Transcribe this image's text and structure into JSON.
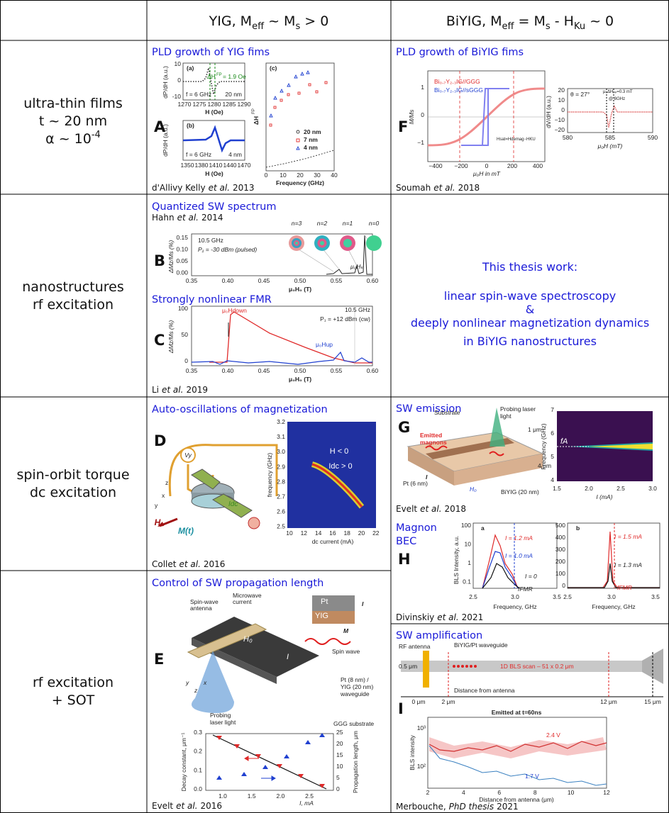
{
  "header": {
    "col2": [
      "YIG, M",
      "eff",
      " ~ M",
      "s",
      " > 0"
    ],
    "col3": [
      "BiYIG, M",
      "eff",
      " = M",
      "s",
      " - H",
      "Ku",
      " ~ 0"
    ]
  },
  "rows": [
    {
      "lines": [
        "ultra-thin films",
        "t ~ 20 nm",
        "α ~ 10",
        "-4"
      ]
    },
    {
      "lines": [
        "nanostructures",
        "rf excitation"
      ]
    },
    {
      "lines": [
        "spin-orbit torque",
        "dc excitation"
      ]
    },
    {
      "lines": [
        "rf excitation",
        "+ SOT"
      ]
    }
  ],
  "thesis": [
    "This thesis work:",
    "linear spin-wave spectroscopy",
    "&",
    "deeply nonlinear magnetization dynamics",
    "in BiYIG nanostructures"
  ],
  "cells": {
    "A": {
      "letter": "A",
      "title": "PLD growth of YIG fims",
      "citation": {
        "pre": "d'Allivy Kelly",
        "italic": "et al.",
        "post": "2013"
      },
      "labels": [
        "(a)",
        "ΔH",
        "FP",
        "= 1.9 Oe",
        "f = 6 GHz",
        "20 nm",
        "10",
        "0",
        "-10",
        "dP/dH (a.u.)",
        "1270",
        "1275",
        "1280",
        "1285",
        "1290",
        "H (Oe)",
        "(b)",
        "f = 6 GHz",
        "4 nm",
        "dP/dH (a.u.)",
        "1350",
        "1380",
        "1410",
        "1440",
        "1470",
        "H (Oe)",
        "(c)",
        "20 nm",
        "7 nm",
        "4 nm",
        "0",
        "10",
        "20",
        "30",
        "40",
        "Frequency (GHz)",
        "ΔH",
        "FP"
      ]
    },
    "F": {
      "letter": "F",
      "title": "PLD growth of BiYIG fims",
      "citation": {
        "pre": "Soumah",
        "italic": "et al.",
        "post": "2018"
      },
      "labels": [
        "Bi₀.₇Y₂.₃IG//GGG",
        "Bi₀.₇Y₂.₃IG//sGGG",
        "1",
        "0",
        "−1",
        "M/Ms",
        "−400",
        "−200",
        "0",
        "200",
        "400",
        "μ₀H in mT",
        "Hsat=Hdemag−HKU",
        "θ = 27°",
        "μ₀ΔHₚₚ=0.3 mT",
        "@ 8GHz",
        "20",
        "10",
        "0",
        "−10",
        "−20",
        "580",
        "585",
        "590",
        "μ₀H (mT)",
        "dV/dH (a.u.)"
      ]
    },
    "B": {
      "letter": "B",
      "title": "Quantized SW spectrum",
      "citation": {
        "pre": "Hahn",
        "italic": "et al.",
        "post": "2014"
      },
      "labels": [
        "n=3",
        "n=2",
        "n=1",
        "n=0",
        "10.5 GHz",
        "P₁ = -30 dBm (pulsed)",
        "0.15",
        "0.10",
        "0.05",
        "0.00",
        "ΔMz/Ms (%)",
        "0.35",
        "0.40",
        "0.45",
        "0.50",
        "0.55",
        "0.60",
        "μ₀H₀ (T)",
        "μ₀Hₖ"
      ]
    },
    "C": {
      "letter": "C",
      "title": "Strongly nonlinear FMR",
      "citation": {
        "pre": "Li",
        "italic": "et al.",
        "post": "2019"
      },
      "labels": [
        "μ₀Hdown",
        "10.5 GHz",
        "P₁ = +12 dBm (cw)",
        "μ₀Hup",
        "100",
        "50",
        "0",
        "ΔMz/Ms (%)",
        "0.35",
        "0.40",
        "0.45",
        "0.50",
        "0.55",
        "0.60",
        "μ₀H₀ (T)"
      ]
    },
    "D": {
      "letter": "D",
      "title": "Auto-oscillations of magnetization",
      "citation": {
        "pre": "Collet",
        "italic": "et al.",
        "post": "2016"
      },
      "labels": [
        "Vy",
        "H",
        "M(t)",
        "Idc",
        "x",
        "y",
        "z",
        "H < 0",
        "Idc > 0",
        "3.2",
        "3.1",
        "3.0",
        "2.9",
        "2.8",
        "2.7",
        "2.6",
        "2.5",
        "frequency (GHz)",
        "10",
        "12",
        "14",
        "16",
        "18",
        "20",
        "22",
        "dc current (mA)"
      ]
    },
    "G": {
      "letter": "G",
      "title": "SW emission",
      "citation": {
        "pre": "Evelt",
        "italic": "et al.",
        "post": "2018"
      },
      "labels": [
        "Probing laser",
        "light",
        "Substrate",
        "Emitted",
        "magnons",
        "1 μm",
        "4 μm",
        "Pt (6 nm)",
        "I",
        "H₀",
        "BiYIG (20 nm)",
        "7",
        "6",
        "5",
        "4",
        "Frequency (GHz)",
        "fA",
        "1.5",
        "2.0",
        "2.5",
        "3.0",
        "I (mA)"
      ]
    },
    "H": {
      "letter": "H",
      "title": [
        "Magnon",
        "BEC"
      ],
      "citation": {
        "pre": "Divinskiy",
        "italic": "et al.",
        "post": "2021"
      },
      "labels": [
        "a",
        "I = 1.2 mA",
        "I = 1.0 mA",
        "I = 0",
        "fFMR",
        "100",
        "10",
        "1",
        "0.1",
        "BLS Intensity, a.u.",
        "2.5",
        "3.0",
        "3.5",
        "Frequency, GHz",
        "b",
        "I = 1.5 mA",
        "I = 1.3 mA",
        "fFMR",
        "500",
        "400",
        "300",
        "200",
        "100",
        "0",
        "2.5",
        "3.0",
        "3.5",
        "Frequency, GHz"
      ]
    },
    "E": {
      "letter": "E",
      "title": "Control of SW propagation length",
      "citation": {
        "pre": "Evelt",
        "italic": "et al.",
        "post": "2016"
      },
      "labels": [
        "Spin-wave",
        "antenna",
        "Microwave",
        "current",
        "Pt",
        "YIG",
        "I",
        "M",
        "Spin wave",
        "H₀",
        "I",
        "Pt (8 nm) /",
        "YIG (20 nm)",
        "waveguide",
        "Probing",
        "laser light",
        "GGG substrate",
        "y",
        "z",
        "x",
        "0.3",
        "0.2",
        "0.1",
        "0.0",
        "25",
        "20",
        "15",
        "10",
        "5",
        "0",
        "Decay constant, μm⁻¹",
        "Propagation length, μm",
        "1.0",
        "1.5",
        "2.0",
        "2.5",
        "I, mA"
      ]
    },
    "I": {
      "letter": "I",
      "title": "SW amplification",
      "citation": {
        "pre": "Merbouche,",
        "italic": "PhD thesis",
        "post": "2021"
      },
      "labels": [
        "RF antenna",
        "BiYIG/Pt waveguide",
        "0.5 μm",
        "1D BLS scan – 51 x 0.2 μm",
        "Distance from antenna",
        "0 μm",
        "2 μm",
        "12 μm",
        "15 μm",
        "Emitted at t=60ns",
        "2.4 V",
        "1.7 V",
        "10³",
        "10²",
        "BLS intensity",
        "2",
        "4",
        "6",
        "8",
        "10",
        "12",
        "Distance from antenna (μm)"
      ]
    }
  }
}
